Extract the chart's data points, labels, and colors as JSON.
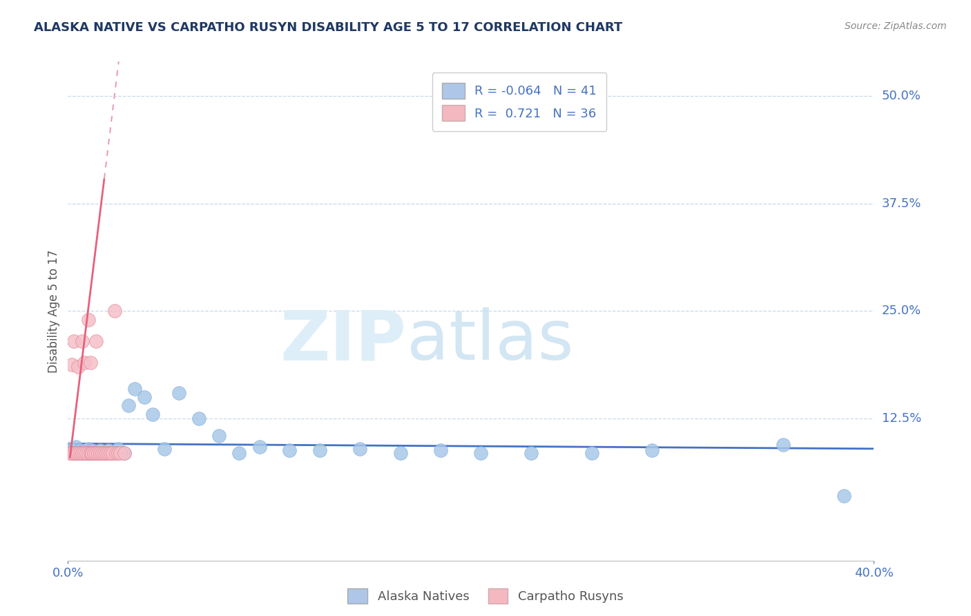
{
  "title": "ALASKA NATIVE VS CARPATHO RUSYN DISABILITY AGE 5 TO 17 CORRELATION CHART",
  "source": "Source: ZipAtlas.com",
  "ylabel": "Disability Age 5 to 17",
  "ytick_labels": [
    "12.5%",
    "25.0%",
    "37.5%",
    "50.0%"
  ],
  "ytick_values": [
    0.125,
    0.25,
    0.375,
    0.5
  ],
  "xmin": 0.0,
  "xmax": 0.4,
  "ymin": -0.04,
  "ymax": 0.54,
  "legend_entries": [
    {
      "label": "Alaska Natives",
      "color": "#aec6e8",
      "R": "-0.064",
      "N": "41"
    },
    {
      "label": "Carpatho Rusyns",
      "color": "#f4b8c1",
      "R": "0.721",
      "N": "36"
    }
  ],
  "alaska_native_x": [
    0.001,
    0.002,
    0.003,
    0.004,
    0.005,
    0.006,
    0.007,
    0.008,
    0.009,
    0.01,
    0.011,
    0.012,
    0.013,
    0.015,
    0.016,
    0.018,
    0.02,
    0.022,
    0.025,
    0.028,
    0.03,
    0.033,
    0.038,
    0.042,
    0.048,
    0.055,
    0.065,
    0.075,
    0.085,
    0.095,
    0.11,
    0.125,
    0.145,
    0.165,
    0.185,
    0.205,
    0.23,
    0.26,
    0.29,
    0.355,
    0.385
  ],
  "alaska_native_y": [
    0.09,
    0.088,
    0.085,
    0.092,
    0.085,
    0.088,
    0.085,
    0.088,
    0.085,
    0.09,
    0.085,
    0.088,
    0.085,
    0.085,
    0.088,
    0.085,
    0.088,
    0.085,
    0.09,
    0.085,
    0.14,
    0.16,
    0.15,
    0.13,
    0.09,
    0.155,
    0.125,
    0.105,
    0.085,
    0.092,
    0.088,
    0.088,
    0.09,
    0.085,
    0.088,
    0.085,
    0.085,
    0.085,
    0.088,
    0.095,
    0.035
  ],
  "carpatho_rusyn_x": [
    0.001,
    0.002,
    0.002,
    0.003,
    0.003,
    0.004,
    0.005,
    0.005,
    0.006,
    0.007,
    0.007,
    0.008,
    0.008,
    0.009,
    0.01,
    0.01,
    0.011,
    0.011,
    0.012,
    0.012,
    0.013,
    0.014,
    0.014,
    0.015,
    0.016,
    0.017,
    0.018,
    0.019,
    0.02,
    0.021,
    0.022,
    0.023,
    0.024,
    0.025,
    0.026,
    0.028
  ],
  "carpatho_rusyn_y": [
    0.085,
    0.085,
    0.188,
    0.085,
    0.215,
    0.085,
    0.085,
    0.185,
    0.085,
    0.085,
    0.215,
    0.085,
    0.19,
    0.085,
    0.085,
    0.24,
    0.085,
    0.19,
    0.085,
    0.085,
    0.085,
    0.085,
    0.215,
    0.085,
    0.085,
    0.085,
    0.085,
    0.085,
    0.085,
    0.085,
    0.085,
    0.25,
    0.085,
    0.085,
    0.085,
    0.085
  ],
  "alaska_native_color": "#a8c8e8",
  "alaska_native_edge": "#7aabda",
  "carpatho_rusyn_color": "#f5bfc8",
  "carpatho_rusyn_edge": "#e08090",
  "trendline_alaska_color": "#4472c4",
  "trendline_carpatho_color": "#e8607a",
  "trendline_carpatho_dashed_color": "#e8a0b0",
  "grid_color": "#c8d8e8",
  "background_color": "#ffffff",
  "legend_box_color_alaska": "#aec6e8",
  "legend_box_color_carpatho": "#f4b8c1",
  "legend_text_color": "#4472c4",
  "title_color": "#1f3864",
  "source_color": "#888888",
  "axis_label_color": "#555555",
  "tick_color": "#4472c4"
}
